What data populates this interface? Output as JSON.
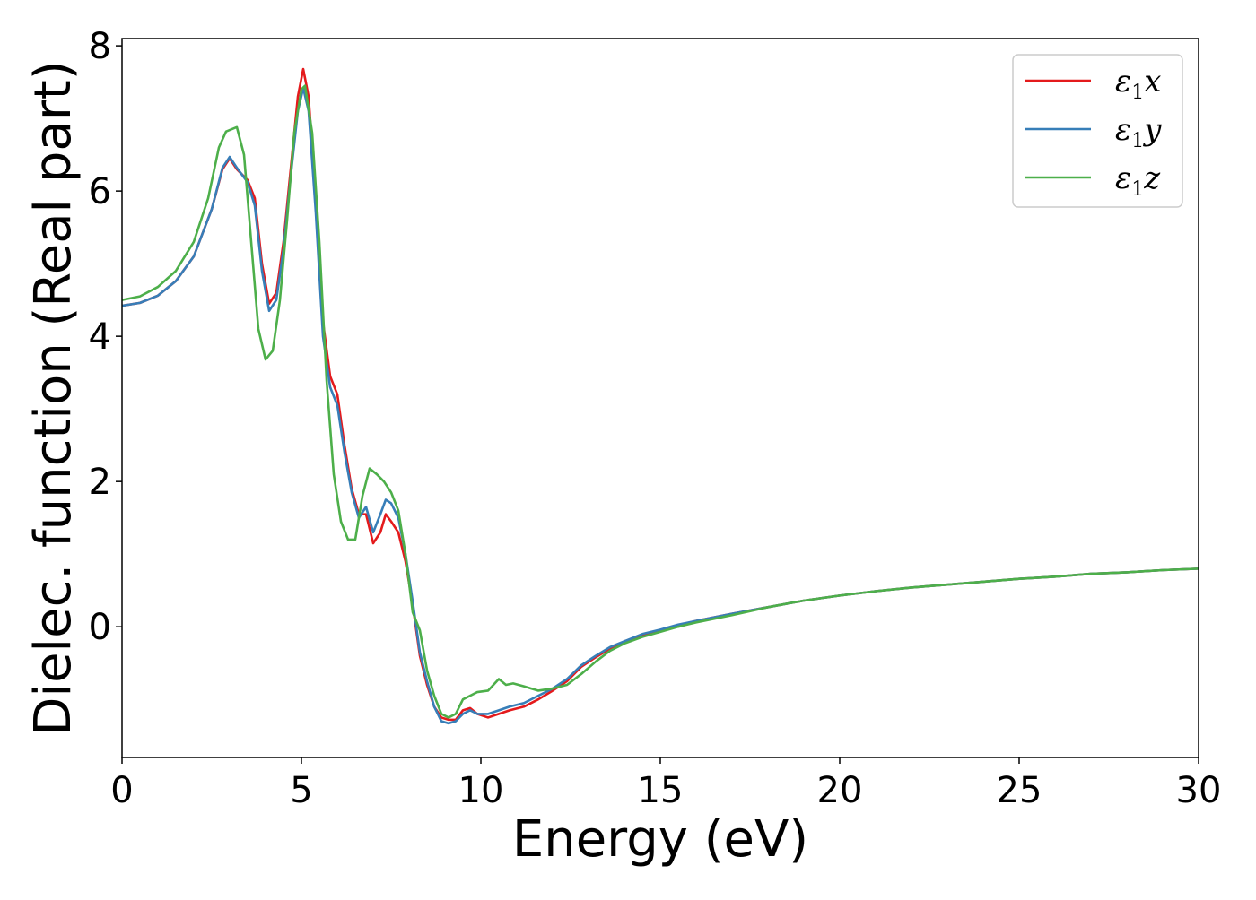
{
  "chart_data": {
    "type": "line",
    "xlabel": "Energy (eV)",
    "ylabel": "Dielec. function (Real part)",
    "xlim": [
      0,
      30
    ],
    "ylim": [
      -1.8,
      8.1
    ],
    "xticks": [
      0,
      5,
      10,
      15,
      20,
      25,
      30
    ],
    "yticks": [
      0,
      2,
      4,
      6,
      8
    ],
    "grid": false,
    "legend_position": "top-right",
    "series": [
      {
        "name": "ε1x",
        "legend_base": "ε",
        "legend_sub": "1",
        "legend_suffix": "x",
        "color": "#e41a1c",
        "points": [
          [
            0,
            4.42
          ],
          [
            0.5,
            4.46
          ],
          [
            1.0,
            4.56
          ],
          [
            1.5,
            4.76
          ],
          [
            2.0,
            5.1
          ],
          [
            2.5,
            5.75
          ],
          [
            2.8,
            6.3
          ],
          [
            3.0,
            6.45
          ],
          [
            3.2,
            6.3
          ],
          [
            3.5,
            6.15
          ],
          [
            3.7,
            5.9
          ],
          [
            3.9,
            5.0
          ],
          [
            4.1,
            4.45
          ],
          [
            4.3,
            4.6
          ],
          [
            4.5,
            5.3
          ],
          [
            4.7,
            6.3
          ],
          [
            4.9,
            7.3
          ],
          [
            5.05,
            7.68
          ],
          [
            5.2,
            7.3
          ],
          [
            5.4,
            5.9
          ],
          [
            5.6,
            4.2
          ],
          [
            5.8,
            3.45
          ],
          [
            6.0,
            3.2
          ],
          [
            6.2,
            2.5
          ],
          [
            6.4,
            1.9
          ],
          [
            6.6,
            1.55
          ],
          [
            6.8,
            1.55
          ],
          [
            7.0,
            1.15
          ],
          [
            7.2,
            1.3
          ],
          [
            7.35,
            1.55
          ],
          [
            7.5,
            1.45
          ],
          [
            7.7,
            1.3
          ],
          [
            7.9,
            0.9
          ],
          [
            8.1,
            0.3
          ],
          [
            8.3,
            -0.4
          ],
          [
            8.5,
            -0.8
          ],
          [
            8.7,
            -1.1
          ],
          [
            8.9,
            -1.25
          ],
          [
            9.1,
            -1.28
          ],
          [
            9.3,
            -1.28
          ],
          [
            9.5,
            -1.15
          ],
          [
            9.7,
            -1.12
          ],
          [
            9.9,
            -1.2
          ],
          [
            10.2,
            -1.25
          ],
          [
            10.5,
            -1.2
          ],
          [
            10.8,
            -1.15
          ],
          [
            11.2,
            -1.1
          ],
          [
            11.6,
            -1.0
          ],
          [
            12.0,
            -0.88
          ],
          [
            12.4,
            -0.75
          ],
          [
            12.8,
            -0.55
          ],
          [
            13.2,
            -0.42
          ],
          [
            13.6,
            -0.3
          ],
          [
            14.0,
            -0.2
          ],
          [
            14.5,
            -0.12
          ],
          [
            15.0,
            -0.05
          ],
          [
            15.5,
            0.02
          ],
          [
            16.0,
            0.08
          ],
          [
            17.0,
            0.18
          ],
          [
            18.0,
            0.27
          ],
          [
            19.0,
            0.36
          ],
          [
            20.0,
            0.43
          ],
          [
            21.0,
            0.49
          ],
          [
            22.0,
            0.54
          ],
          [
            23.0,
            0.58
          ],
          [
            24.0,
            0.62
          ],
          [
            25.0,
            0.66
          ],
          [
            26.0,
            0.69
          ],
          [
            27.0,
            0.73
          ],
          [
            28.0,
            0.75
          ],
          [
            29.0,
            0.78
          ],
          [
            30.0,
            0.8
          ]
        ]
      },
      {
        "name": "ε1y",
        "legend_base": "ε",
        "legend_sub": "1",
        "legend_suffix": "y",
        "color": "#377eb8",
        "points": [
          [
            0,
            4.42
          ],
          [
            0.5,
            4.46
          ],
          [
            1.0,
            4.56
          ],
          [
            1.5,
            4.76
          ],
          [
            2.0,
            5.1
          ],
          [
            2.5,
            5.75
          ],
          [
            2.8,
            6.32
          ],
          [
            3.0,
            6.47
          ],
          [
            3.2,
            6.32
          ],
          [
            3.5,
            6.12
          ],
          [
            3.7,
            5.8
          ],
          [
            3.9,
            4.9
          ],
          [
            4.1,
            4.35
          ],
          [
            4.3,
            4.5
          ],
          [
            4.5,
            5.2
          ],
          [
            4.7,
            6.2
          ],
          [
            4.9,
            7.1
          ],
          [
            5.05,
            7.42
          ],
          [
            5.2,
            7.1
          ],
          [
            5.4,
            5.7
          ],
          [
            5.6,
            4.0
          ],
          [
            5.8,
            3.3
          ],
          [
            6.0,
            3.05
          ],
          [
            6.2,
            2.4
          ],
          [
            6.4,
            1.85
          ],
          [
            6.6,
            1.5
          ],
          [
            6.8,
            1.65
          ],
          [
            7.0,
            1.3
          ],
          [
            7.2,
            1.55
          ],
          [
            7.35,
            1.75
          ],
          [
            7.5,
            1.7
          ],
          [
            7.7,
            1.5
          ],
          [
            7.9,
            1.0
          ],
          [
            8.1,
            0.35
          ],
          [
            8.3,
            -0.35
          ],
          [
            8.5,
            -0.75
          ],
          [
            8.7,
            -1.1
          ],
          [
            8.9,
            -1.3
          ],
          [
            9.1,
            -1.33
          ],
          [
            9.3,
            -1.3
          ],
          [
            9.5,
            -1.2
          ],
          [
            9.7,
            -1.15
          ],
          [
            9.9,
            -1.2
          ],
          [
            10.2,
            -1.2
          ],
          [
            10.5,
            -1.15
          ],
          [
            10.8,
            -1.1
          ],
          [
            11.2,
            -1.05
          ],
          [
            11.6,
            -0.95
          ],
          [
            12.0,
            -0.85
          ],
          [
            12.4,
            -0.72
          ],
          [
            12.8,
            -0.53
          ],
          [
            13.2,
            -0.4
          ],
          [
            13.6,
            -0.28
          ],
          [
            14.0,
            -0.2
          ],
          [
            14.5,
            -0.1
          ],
          [
            15.0,
            -0.04
          ],
          [
            15.5,
            0.03
          ],
          [
            16.0,
            0.08
          ],
          [
            17.0,
            0.18
          ],
          [
            18.0,
            0.27
          ],
          [
            19.0,
            0.36
          ],
          [
            20.0,
            0.43
          ],
          [
            21.0,
            0.49
          ],
          [
            22.0,
            0.54
          ],
          [
            23.0,
            0.58
          ],
          [
            24.0,
            0.62
          ],
          [
            25.0,
            0.66
          ],
          [
            26.0,
            0.69
          ],
          [
            27.0,
            0.73
          ],
          [
            28.0,
            0.75
          ],
          [
            29.0,
            0.78
          ],
          [
            30.0,
            0.8
          ]
        ]
      },
      {
        "name": "ε1z",
        "legend_base": "ε",
        "legend_sub": "1",
        "legend_suffix": "z",
        "color": "#4daf4a",
        "points": [
          [
            0,
            4.5
          ],
          [
            0.5,
            4.55
          ],
          [
            1.0,
            4.68
          ],
          [
            1.5,
            4.9
          ],
          [
            2.0,
            5.3
          ],
          [
            2.4,
            5.9
          ],
          [
            2.7,
            6.6
          ],
          [
            2.9,
            6.82
          ],
          [
            3.2,
            6.88
          ],
          [
            3.4,
            6.5
          ],
          [
            3.6,
            5.3
          ],
          [
            3.8,
            4.1
          ],
          [
            4.0,
            3.68
          ],
          [
            4.2,
            3.8
          ],
          [
            4.4,
            4.5
          ],
          [
            4.6,
            5.6
          ],
          [
            4.8,
            6.8
          ],
          [
            5.0,
            7.4
          ],
          [
            5.1,
            7.45
          ],
          [
            5.3,
            6.8
          ],
          [
            5.5,
            5.3
          ],
          [
            5.7,
            3.4
          ],
          [
            5.9,
            2.1
          ],
          [
            6.1,
            1.45
          ],
          [
            6.3,
            1.2
          ],
          [
            6.5,
            1.2
          ],
          [
            6.7,
            1.8
          ],
          [
            6.9,
            2.18
          ],
          [
            7.1,
            2.1
          ],
          [
            7.3,
            2.0
          ],
          [
            7.5,
            1.85
          ],
          [
            7.7,
            1.6
          ],
          [
            7.9,
            1.0
          ],
          [
            8.1,
            0.2
          ],
          [
            8.3,
            -0.05
          ],
          [
            8.5,
            -0.6
          ],
          [
            8.7,
            -0.95
          ],
          [
            8.9,
            -1.2
          ],
          [
            9.1,
            -1.25
          ],
          [
            9.3,
            -1.2
          ],
          [
            9.5,
            -1.0
          ],
          [
            9.7,
            -0.95
          ],
          [
            9.9,
            -0.9
          ],
          [
            10.2,
            -0.88
          ],
          [
            10.5,
            -0.72
          ],
          [
            10.7,
            -0.8
          ],
          [
            10.9,
            -0.78
          ],
          [
            11.2,
            -0.82
          ],
          [
            11.6,
            -0.88
          ],
          [
            12.0,
            -0.85
          ],
          [
            12.4,
            -0.8
          ],
          [
            12.8,
            -0.65
          ],
          [
            13.2,
            -0.48
          ],
          [
            13.6,
            -0.33
          ],
          [
            14.0,
            -0.23
          ],
          [
            14.5,
            -0.14
          ],
          [
            15.0,
            -0.07
          ],
          [
            15.5,
            0.0
          ],
          [
            16.0,
            0.06
          ],
          [
            17.0,
            0.16
          ],
          [
            18.0,
            0.27
          ],
          [
            19.0,
            0.36
          ],
          [
            20.0,
            0.43
          ],
          [
            21.0,
            0.49
          ],
          [
            22.0,
            0.54
          ],
          [
            23.0,
            0.58
          ],
          [
            24.0,
            0.62
          ],
          [
            25.0,
            0.66
          ],
          [
            26.0,
            0.69
          ],
          [
            27.0,
            0.73
          ],
          [
            28.0,
            0.75
          ],
          [
            29.0,
            0.78
          ],
          [
            30.0,
            0.8
          ]
        ]
      }
    ]
  }
}
